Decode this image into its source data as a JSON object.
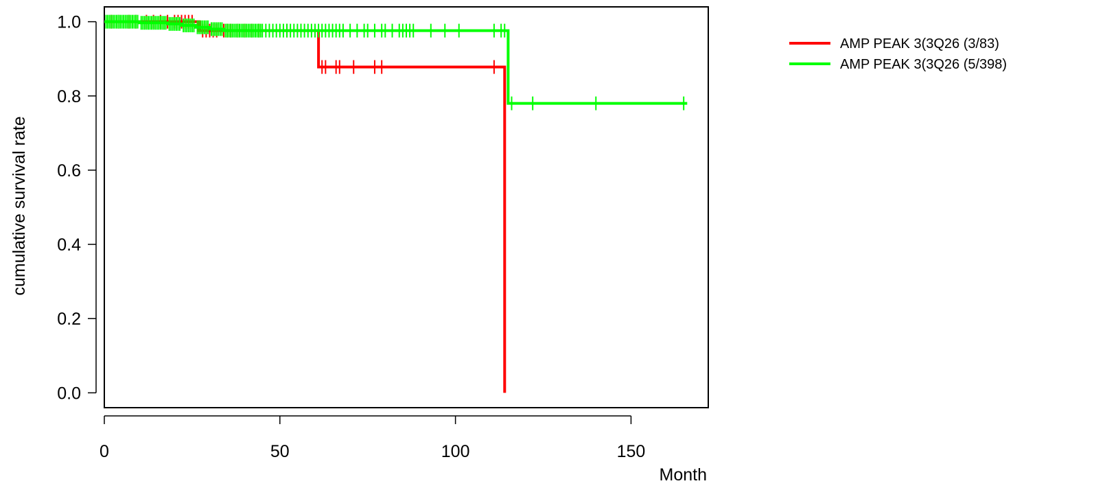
{
  "chart_data": {
    "type": "line",
    "title": "",
    "xlabel": "Month",
    "ylabel": "cumulative survival rate",
    "xlim": [
      0,
      172
    ],
    "ylim": [
      -0.04,
      1.04
    ],
    "x_ticks": [
      0,
      50,
      100,
      150
    ],
    "x_tick_labels": [
      "0",
      "50",
      "100",
      "150"
    ],
    "y_ticks": [
      0.0,
      0.2,
      0.4,
      0.6,
      0.8,
      1.0
    ],
    "y_tick_labels": [
      "0.0",
      "0.2",
      "0.4",
      "0.6",
      "0.8",
      "1.0"
    ],
    "grid": false,
    "legend_position": "top-right, outside plot",
    "series": [
      {
        "name": "AMP PEAK  3(3Q26 (3/83)",
        "color": "#ff0000",
        "steps": [
          [
            0,
            1.0
          ],
          [
            27,
            1.0
          ],
          [
            27,
            0.976
          ],
          [
            61,
            0.976
          ],
          [
            61,
            0.878
          ],
          [
            114,
            0.878
          ],
          [
            114,
            0.0
          ]
        ],
        "censor_x": [
          2,
          4,
          7,
          9,
          12,
          14,
          16,
          18,
          20,
          21,
          22,
          23,
          24,
          25,
          28,
          29,
          30,
          31,
          32,
          34,
          35,
          36,
          38,
          40,
          42,
          44,
          52,
          56,
          62,
          63,
          66,
          67,
          71,
          77,
          79,
          111
        ],
        "censor_y": [
          1.0,
          1.0,
          1.0,
          1.0,
          1.0,
          1.0,
          1.0,
          1.0,
          1.0,
          1.0,
          1.0,
          1.0,
          1.0,
          1.0,
          0.976,
          0.976,
          0.976,
          0.976,
          0.976,
          0.976,
          0.976,
          0.976,
          0.976,
          0.976,
          0.976,
          0.976,
          0.976,
          0.976,
          0.878,
          0.878,
          0.878,
          0.878,
          0.878,
          0.878,
          0.878,
          0.878
        ]
      },
      {
        "name": "AMP PEAK  3(3Q26 (5/398)",
        "color": "#00ff00",
        "steps": [
          [
            0,
            1.0
          ],
          [
            10,
            1.0
          ],
          [
            10,
            0.997
          ],
          [
            18,
            0.997
          ],
          [
            18,
            0.994
          ],
          [
            22,
            0.994
          ],
          [
            22,
            0.99
          ],
          [
            26,
            0.99
          ],
          [
            26,
            0.985
          ],
          [
            30,
            0.985
          ],
          [
            30,
            0.98
          ],
          [
            34,
            0.98
          ],
          [
            34,
            0.976
          ],
          [
            115,
            0.976
          ],
          [
            115,
            0.78
          ],
          [
            166,
            0.78
          ]
        ],
        "censor_x": [
          0.5,
          1,
          1.5,
          2,
          2.5,
          3,
          3.5,
          4,
          4.5,
          5,
          5.5,
          6,
          6.5,
          7,
          7.5,
          8,
          8.5,
          9,
          9.5,
          10.5,
          11,
          11.5,
          12,
          12.5,
          13,
          13.5,
          14,
          14.5,
          15,
          15.5,
          16,
          16.5,
          17,
          17.5,
          18.5,
          19,
          19.5,
          20,
          20.5,
          21,
          21.5,
          22.5,
          23,
          23.5,
          24,
          24.5,
          25,
          25.5,
          26.5,
          27,
          27.5,
          28,
          28.5,
          29,
          29.5,
          30.5,
          31,
          31.5,
          32,
          32.5,
          33,
          33.5,
          34.5,
          35,
          35.5,
          36,
          36.5,
          37,
          37.5,
          38,
          38.5,
          39,
          39.5,
          40,
          40.5,
          41,
          41.5,
          42,
          42.5,
          43,
          43.5,
          44,
          44.5,
          45,
          46,
          47,
          48,
          49,
          50,
          51,
          52,
          53,
          54,
          55,
          56,
          57,
          58,
          59,
          60,
          61,
          62,
          63,
          64,
          65,
          66,
          67,
          68,
          70,
          72,
          74,
          75,
          77,
          79,
          80,
          82,
          84,
          85,
          86,
          87,
          88,
          93,
          97,
          101,
          111,
          113,
          114,
          116,
          122,
          140,
          165
        ],
        "censor_y": [
          1.0,
          1.0,
          1.0,
          1.0,
          1.0,
          1.0,
          1.0,
          1.0,
          1.0,
          1.0,
          1.0,
          1.0,
          1.0,
          1.0,
          1.0,
          1.0,
          1.0,
          1.0,
          1.0,
          0.997,
          0.997,
          0.997,
          0.997,
          0.997,
          0.997,
          0.997,
          0.997,
          0.997,
          0.997,
          0.997,
          0.997,
          0.997,
          0.997,
          0.997,
          0.994,
          0.994,
          0.994,
          0.994,
          0.994,
          0.994,
          0.994,
          0.99,
          0.99,
          0.99,
          0.99,
          0.99,
          0.99,
          0.99,
          0.985,
          0.985,
          0.985,
          0.985,
          0.985,
          0.985,
          0.985,
          0.98,
          0.98,
          0.98,
          0.98,
          0.98,
          0.98,
          0.98,
          0.976,
          0.976,
          0.976,
          0.976,
          0.976,
          0.976,
          0.976,
          0.976,
          0.976,
          0.976,
          0.976,
          0.976,
          0.976,
          0.976,
          0.976,
          0.976,
          0.976,
          0.976,
          0.976,
          0.976,
          0.976,
          0.976,
          0.976,
          0.976,
          0.976,
          0.976,
          0.976,
          0.976,
          0.976,
          0.976,
          0.976,
          0.976,
          0.976,
          0.976,
          0.976,
          0.976,
          0.976,
          0.976,
          0.976,
          0.976,
          0.976,
          0.976,
          0.976,
          0.976,
          0.976,
          0.976,
          0.976,
          0.976,
          0.976,
          0.976,
          0.976,
          0.976,
          0.976,
          0.976,
          0.976,
          0.976,
          0.976,
          0.976,
          0.976,
          0.976,
          0.976,
          0.976,
          0.976,
          0.976,
          0.78,
          0.78,
          0.78,
          0.78
        ]
      }
    ]
  }
}
